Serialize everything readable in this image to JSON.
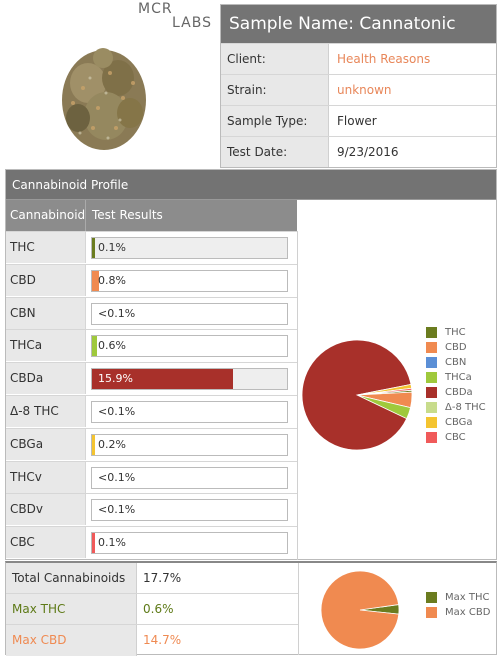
{
  "logo": {
    "line1": "MCR",
    "line2": "LABS"
  },
  "sample": {
    "title": "Sample Name: Cannatonic",
    "rows": [
      {
        "label": "Client:",
        "value": "Health Reasons",
        "accent": true
      },
      {
        "label": "Strain:",
        "value": "unknown",
        "accent": true
      },
      {
        "label": "Sample Type:",
        "value": "Flower",
        "accent": false
      },
      {
        "label": "Test Date:",
        "value": "9/23/2016",
        "accent": false
      }
    ]
  },
  "profile": {
    "title": "Cannabinoid Profile",
    "col_name": "Cannabinoid",
    "col_results": "Test Results",
    "rows": [
      {
        "name": "THC",
        "result": "0.1%",
        "percent": 0.1,
        "color": "#6b7c1f",
        "shaded": true
      },
      {
        "name": "CBD",
        "result": "0.8%",
        "percent": 0.8,
        "color": "#f08a50",
        "shaded": false
      },
      {
        "name": "CBN",
        "result": "<0.1%",
        "percent": 0,
        "color": "#5b8fd6",
        "shaded": false
      },
      {
        "name": "THCa",
        "result": "0.6%",
        "percent": 0.6,
        "color": "#9fc93c",
        "shaded": false
      },
      {
        "name": "CBDa",
        "result": "15.9%",
        "percent": 15.9,
        "color": "#a8302a",
        "shaded": true
      },
      {
        "name": "Δ-8 THC",
        "result": "<0.1%",
        "percent": 0,
        "color": "#c8dc8c",
        "shaded": false
      },
      {
        "name": "CBGa",
        "result": "0.2%",
        "percent": 0.2,
        "color": "#f4c430",
        "shaded": false
      },
      {
        "name": "THCv",
        "result": "<0.1%",
        "percent": 0,
        "color": "#999999",
        "shaded": false
      },
      {
        "name": "CBDv",
        "result": "<0.1%",
        "percent": 0,
        "color": "#999999",
        "shaded": false
      },
      {
        "name": "CBC",
        "result": "0.1%",
        "percent": 0.1,
        "color": "#f05a5a",
        "shaded": false
      }
    ],
    "bar_scale_max": 22,
    "legend": [
      {
        "label": "THC",
        "color": "#6b7c1f"
      },
      {
        "label": "CBD",
        "color": "#f08a50"
      },
      {
        "label": "CBN",
        "color": "#5b8fd6"
      },
      {
        "label": "THCa",
        "color": "#9fc93c"
      },
      {
        "label": "CBDa",
        "color": "#a8302a"
      },
      {
        "label": "Δ-8 THC",
        "color": "#c8dc8c"
      },
      {
        "label": "CBGa",
        "color": "#f4c430"
      },
      {
        "label": "CBC",
        "color": "#f05a5a"
      }
    ]
  },
  "totals": {
    "rows": [
      {
        "label": "Total Cannabinoids",
        "value": "17.7%",
        "style": "plain"
      },
      {
        "label": "Max THC",
        "value": "0.6%",
        "style": "green"
      },
      {
        "label": "Max CBD",
        "value": "14.7%",
        "style": "orange"
      }
    ],
    "legend": [
      {
        "label": "Max THC",
        "color": "#6b7c1f"
      },
      {
        "label": "Max CBD",
        "color": "#f08a50"
      }
    ]
  },
  "chart_data": [
    {
      "type": "pie",
      "labels": [
        "THC",
        "CBD",
        "CBN",
        "THCa",
        "CBDa",
        "Δ-8 THC",
        "CBGa",
        "CBC"
      ],
      "values": [
        0.1,
        0.8,
        0,
        0.6,
        15.9,
        0,
        0.2,
        0.1
      ],
      "colors": [
        "#6b7c1f",
        "#f08a50",
        "#5b8fd6",
        "#9fc93c",
        "#a8302a",
        "#c8dc8c",
        "#f4c430",
        "#f05a5a"
      ],
      "legend": "right"
    },
    {
      "type": "pie",
      "labels": [
        "Max THC",
        "Max CBD"
      ],
      "values": [
        0.6,
        14.7
      ],
      "colors": [
        "#6b7c1f",
        "#f08a50"
      ],
      "legend": "right"
    }
  ]
}
